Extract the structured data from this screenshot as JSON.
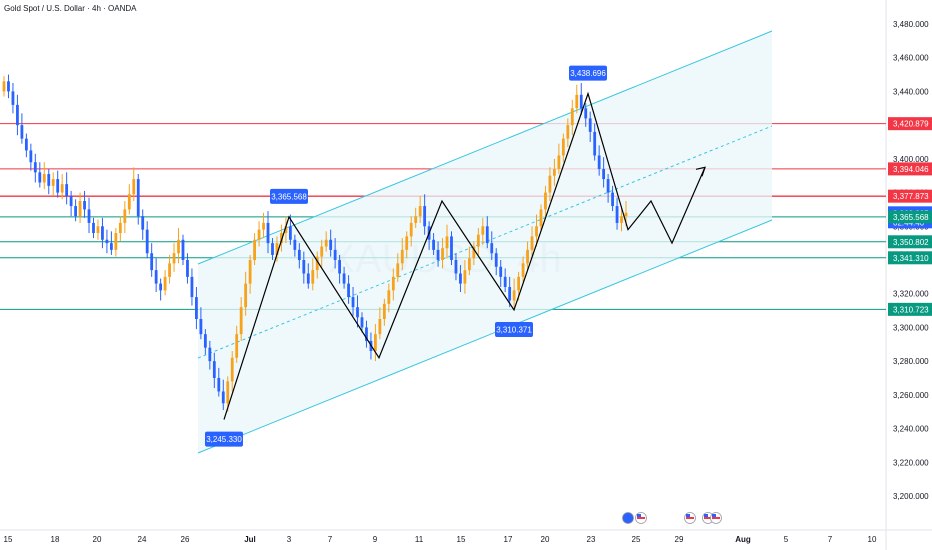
{
  "header": {
    "title": "Gold Spot / U.S. Dollar · 4h · OANDA"
  },
  "watermark": "XAUUSD, 4h",
  "colors": {
    "bull": "#f7a21b",
    "bear": "#2962ff",
    "channel": "#38c6e0",
    "channel_fill": "#e9f7fb",
    "red_level": "#f23645",
    "green_level": "#089981",
    "path": "#000000"
  },
  "chart_data": {
    "type": "candlestick",
    "symbol": "XAUUSD",
    "timeframe": "4h",
    "y_axis": {
      "min": 3200,
      "max": 3480,
      "ticks": [
        "3,480.000",
        "3,460.000",
        "3,440.000",
        "3,420.000",
        "3,400.000",
        "3,380.000",
        "3,360.000",
        "3,340.000",
        "3,320.000",
        "3,300.000",
        "3,280.000",
        "3,260.000",
        "3,240.000",
        "3,220.000",
        "3,200.000"
      ]
    },
    "x_axis": {
      "labels": [
        "15",
        "18",
        "20",
        "24",
        "26",
        "Jul",
        "3",
        "7",
        "9",
        "11",
        "15",
        "17",
        "20",
        "23",
        "25",
        "29",
        "Aug",
        "5",
        "7",
        "10"
      ]
    },
    "price_labels": [
      {
        "text": "3,420.879",
        "value": 3420.879,
        "kind": "red"
      },
      {
        "text": "3,394.046",
        "value": 3394.046,
        "kind": "red"
      },
      {
        "text": "3,377.873",
        "value": 3377.873,
        "kind": "red"
      },
      {
        "text": "3,368.295",
        "value": 3368.295,
        "kind": "blue",
        "sub": "02:44:40"
      },
      {
        "text": "3,365.568",
        "value": 3365.568,
        "kind": "green"
      },
      {
        "text": "3,350.802",
        "value": 3350.802,
        "kind": "green"
      },
      {
        "text": "3,341.310",
        "value": 3341.31,
        "kind": "green"
      },
      {
        "text": "3,310.723",
        "value": 3310.723,
        "kind": "green"
      }
    ],
    "annotations": [
      {
        "text": "3,245.330",
        "value": 3245.33
      },
      {
        "text": "3,365.568",
        "value": 3365.568
      },
      {
        "text": "3,438.696",
        "value": 3438.696
      },
      {
        "text": "3,310.371",
        "value": 3310.371
      }
    ],
    "zigzag_values": [
      3245.33,
      3365.568,
      3282,
      3375,
      3311,
      3438.696,
      3358,
      3375,
      3350,
      3368,
      3352,
      3395
    ],
    "candles_close": [
      3446,
      3440,
      3432,
      3420,
      3412,
      3405,
      3398,
      3392,
      3386,
      3391,
      3384,
      3388,
      3380,
      3385,
      3378,
      3372,
      3366,
      3375,
      3370,
      3362,
      3356,
      3360,
      3352,
      3350,
      3346,
      3356,
      3362,
      3370,
      3379,
      3388,
      3366,
      3358,
      3344,
      3334,
      3326,
      3322,
      3330,
      3338,
      3344,
      3352,
      3340,
      3330,
      3318,
      3305,
      3296,
      3288,
      3280,
      3270,
      3262,
      3255,
      3268,
      3282,
      3296,
      3312,
      3326,
      3340,
      3352,
      3358,
      3362,
      3350,
      3343,
      3350,
      3356,
      3360,
      3352,
      3346,
      3340,
      3332,
      3326,
      3334,
      3342,
      3348,
      3352,
      3346,
      3340,
      3332,
      3326,
      3318,
      3312,
      3306,
      3300,
      3292,
      3286,
      3296,
      3305,
      3314,
      3322,
      3330,
      3338,
      3346,
      3354,
      3362,
      3366,
      3372,
      3360,
      3352,
      3346,
      3340,
      3347,
      3354,
      3340,
      3332,
      3326,
      3334,
      3341,
      3348,
      3355,
      3360,
      3350,
      3344,
      3336,
      3330,
      3324,
      3316,
      3322,
      3330,
      3338,
      3346,
      3354,
      3360,
      3370,
      3380,
      3390,
      3394,
      3402,
      3412,
      3420,
      3430,
      3438,
      3430,
      3424,
      3416,
      3402,
      3394,
      3388,
      3380,
      3372,
      3362,
      3366,
      3368
    ]
  }
}
